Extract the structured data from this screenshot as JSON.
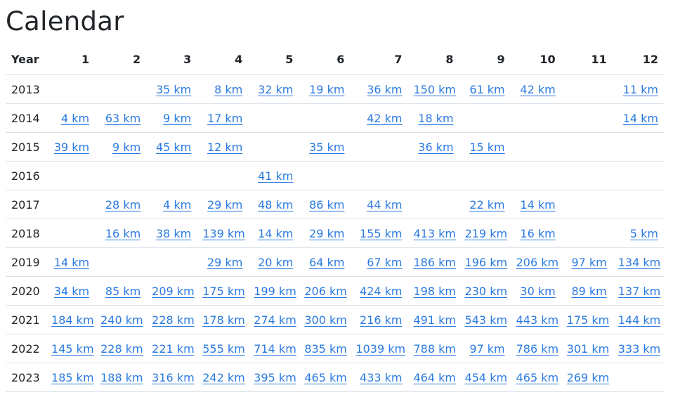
{
  "page": {
    "title": "Calendar"
  },
  "table": {
    "headers": [
      "Year",
      "1",
      "2",
      "3",
      "4",
      "5",
      "6",
      "7",
      "8",
      "9",
      "10",
      "11",
      "12"
    ],
    "rows": [
      {
        "year": "2013",
        "cells": [
          "",
          "",
          "35 km",
          "8 km",
          "32 km",
          "19 km",
          "36 km",
          "150 km",
          "61 km",
          "42 km",
          "",
          "11 km"
        ]
      },
      {
        "year": "2014",
        "cells": [
          "4 km",
          "63 km",
          "9 km",
          "17 km",
          "",
          "",
          "42 km",
          "18 km",
          "",
          "",
          "",
          "14 km"
        ]
      },
      {
        "year": "2015",
        "cells": [
          "39 km",
          "9 km",
          "45 km",
          "12 km",
          "",
          "35 km",
          "",
          "36 km",
          "15 km",
          "",
          "",
          ""
        ]
      },
      {
        "year": "2016",
        "cells": [
          "",
          "",
          "",
          "",
          "41 km",
          "",
          "",
          "",
          "",
          "",
          "",
          ""
        ]
      },
      {
        "year": "2017",
        "cells": [
          "",
          "28 km",
          "4 km",
          "29 km",
          "48 km",
          "86 km",
          "44 km",
          "",
          "22 km",
          "14 km",
          "",
          ""
        ]
      },
      {
        "year": "2018",
        "cells": [
          "",
          "16 km",
          "38 km",
          "139 km",
          "14 km",
          "29 km",
          "155 km",
          "413 km",
          "219 km",
          "16 km",
          "",
          "5 km"
        ]
      },
      {
        "year": "2019",
        "cells": [
          "14 km",
          "",
          "",
          "29 km",
          "20 km",
          "64 km",
          "67 km",
          "186 km",
          "196 km",
          "206 km",
          "97 km",
          "134 km"
        ]
      },
      {
        "year": "2020",
        "cells": [
          "34 km",
          "85 km",
          "209 km",
          "175 km",
          "199 km",
          "206 km",
          "424 km",
          "198 km",
          "230 km",
          "30 km",
          "89 km",
          "137 km"
        ]
      },
      {
        "year": "2021",
        "cells": [
          "184 km",
          "240 km",
          "228 km",
          "178 km",
          "274 km",
          "300 km",
          "216 km",
          "491 km",
          "543 km",
          "443 km",
          "175 km",
          "144 km"
        ]
      },
      {
        "year": "2022",
        "cells": [
          "145 km",
          "228 km",
          "221 km",
          "555 km",
          "714 km",
          "835 km",
          "1039 km",
          "788 km",
          "97 km",
          "786 km",
          "301 km",
          "333 km"
        ]
      },
      {
        "year": "2023",
        "cells": [
          "185 km",
          "188 km",
          "316 km",
          "242 km",
          "395 km",
          "465 km",
          "433 km",
          "464 km",
          "454 km",
          "465 km",
          "269 km",
          ""
        ]
      }
    ]
  },
  "colors": {
    "link": "#2a7ae2",
    "text": "#212529",
    "border": "#dee2e6"
  }
}
